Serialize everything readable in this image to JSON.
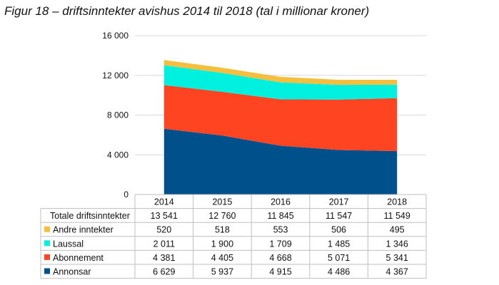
{
  "chart_data": {
    "type": "area",
    "stacked": true,
    "title": "Figur 18 – driftsinntekter avishus 2014 til 2018 (tal i millionar kroner)",
    "categories": [
      "2014",
      "2015",
      "2016",
      "2017",
      "2018"
    ],
    "ylim": [
      0,
      16000
    ],
    "yticks": [
      0,
      4000,
      8000,
      12000,
      16000
    ],
    "ytick_labels": [
      "0",
      "4 000",
      "8 000",
      "12 000",
      "16 000"
    ],
    "grid": true,
    "series": [
      {
        "name": "Annonsar",
        "color": "#00508C",
        "values": [
          6629,
          5937,
          4915,
          4486,
          4367
        ],
        "labels": [
          "6 629",
          "5 937",
          "4 915",
          "4 486",
          "4 367"
        ]
      },
      {
        "name": "Abonnement",
        "color": "#FF4422",
        "values": [
          4381,
          4405,
          4668,
          5071,
          5341
        ],
        "labels": [
          "4 381",
          "4 405",
          "4 668",
          "5 071",
          "5 341"
        ]
      },
      {
        "name": "Laussal",
        "color": "#00F0E0",
        "values": [
          2011,
          1900,
          1709,
          1485,
          1346
        ],
        "labels": [
          "2 011",
          "1 900",
          "1 709",
          "1 485",
          "1 346"
        ]
      },
      {
        "name": "Andre inntekter",
        "color": "#F5BE3C",
        "values": [
          520,
          518,
          553,
          506,
          495
        ],
        "labels": [
          "520",
          "518",
          "553",
          "506",
          "495"
        ]
      }
    ],
    "totals": {
      "name": "Totale driftsinntekter",
      "values": [
        13541,
        12760,
        11845,
        11547,
        11549
      ],
      "labels": [
        "13 541",
        "12 760",
        "11 845",
        "11 547",
        "11 549"
      ]
    }
  }
}
